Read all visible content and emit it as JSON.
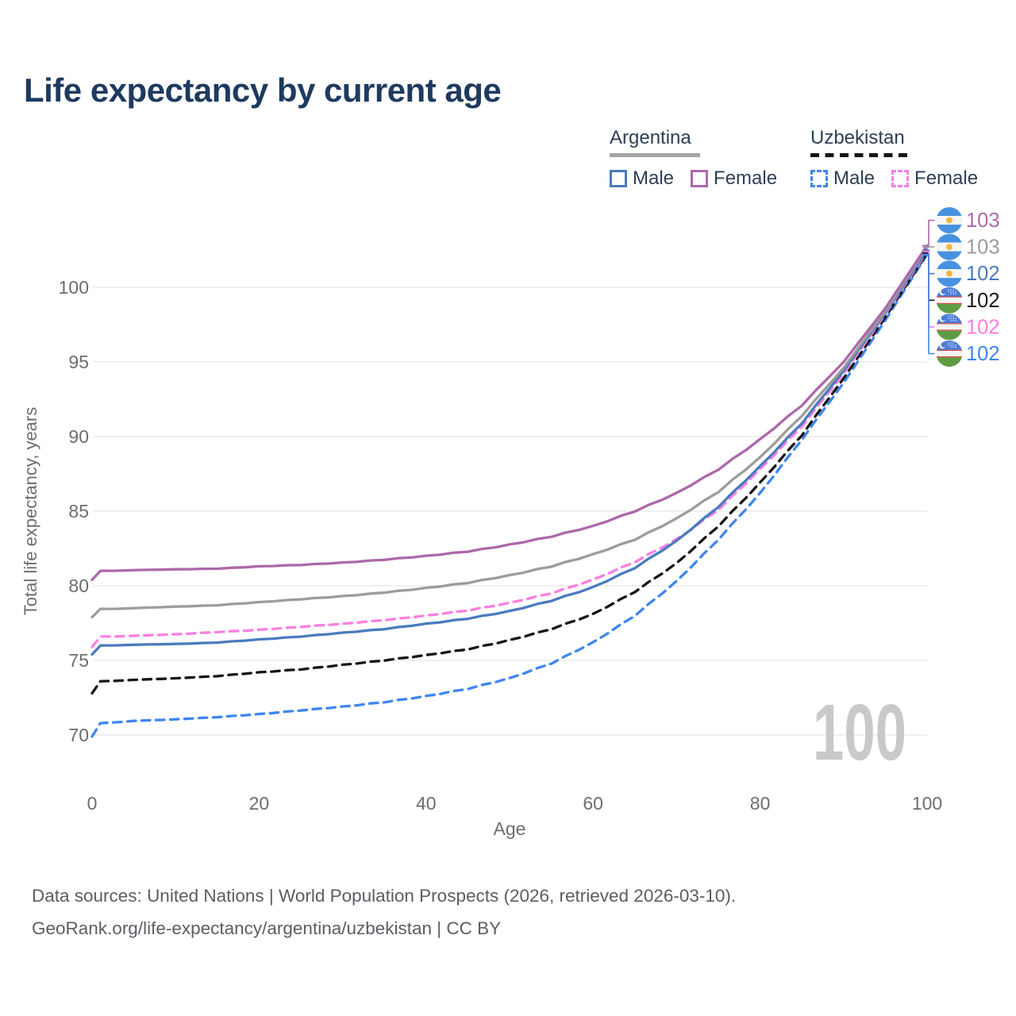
{
  "title": "Life expectancy by current age",
  "watermark": "100",
  "legend": {
    "groups": [
      {
        "label": "Argentina",
        "line_style": "solid",
        "line_color": "#a3a3a3",
        "items": [
          {
            "label": "Male",
            "color": "#4a7bbd",
            "style": "solid"
          },
          {
            "label": "Female",
            "color": "#ac68aa",
            "style": "solid"
          }
        ]
      },
      {
        "label": "Uzbekistan",
        "line_style": "dashed",
        "line_color": "#161616",
        "items": [
          {
            "label": "Male",
            "color": "#3e86f0",
            "style": "dashed"
          },
          {
            "label": "Female",
            "color": "#fb7ee0",
            "style": "dashed"
          }
        ]
      }
    ]
  },
  "chart_data": {
    "type": "line",
    "title": "Life expectancy by current age",
    "xlabel": "Age",
    "ylabel": "Total life expectancy, years",
    "xlim": [
      0,
      100
    ],
    "ylim": [
      68,
      104
    ],
    "x_ticks": [
      0,
      20,
      40,
      60,
      80,
      100
    ],
    "y_ticks": [
      70,
      75,
      80,
      85,
      90,
      95,
      100
    ],
    "grid": "horizontal",
    "legend_position": "top-right",
    "x": [
      0,
      1,
      5,
      10,
      15,
      20,
      25,
      30,
      35,
      40,
      45,
      50,
      55,
      60,
      65,
      70,
      75,
      80,
      85,
      90,
      95,
      100
    ],
    "series": [
      {
        "name": "Argentina Female",
        "country": "Argentina",
        "sex": "Female",
        "color": "#ac68aa",
        "dash": false,
        "end_label": "103",
        "flag": "argentina-flag-icon",
        "values": [
          80.4,
          81.0,
          81.05,
          81.1,
          81.15,
          81.3,
          81.4,
          81.55,
          81.75,
          82.0,
          82.3,
          82.75,
          83.3,
          84.0,
          85.0,
          86.2,
          87.8,
          89.8,
          92.1,
          95.0,
          98.6,
          102.8
        ]
      },
      {
        "name": "Argentina Both sexes",
        "country": "Argentina",
        "sex": "Both",
        "color": "#9c9c9c",
        "dash": false,
        "end_label": "103",
        "flag": "argentina-flag-icon",
        "values": [
          77.9,
          78.45,
          78.5,
          78.6,
          78.7,
          78.9,
          79.1,
          79.3,
          79.55,
          79.85,
          80.2,
          80.7,
          81.3,
          82.1,
          83.1,
          84.5,
          86.3,
          88.6,
          91.4,
          94.6,
          98.4,
          102.7
        ]
      },
      {
        "name": "Argentina Male",
        "country": "Argentina",
        "sex": "Male",
        "color": "#4a7bbd",
        "dash": false,
        "end_label": "102",
        "flag": "argentina-flag-icon",
        "values": [
          75.4,
          76.0,
          76.05,
          76.1,
          76.2,
          76.4,
          76.6,
          76.85,
          77.1,
          77.45,
          77.8,
          78.3,
          79.0,
          79.9,
          81.2,
          83.0,
          85.3,
          88.0,
          90.9,
          94.4,
          98.3,
          102.5
        ]
      },
      {
        "name": "Uzbekistan Both sexes",
        "country": "Uzbekistan",
        "sex": "Both",
        "color": "#161616",
        "dash": true,
        "end_label": "102",
        "flag": "uzbekistan-flag-icon",
        "values": [
          72.8,
          73.6,
          73.7,
          73.8,
          73.95,
          74.2,
          74.4,
          74.7,
          75.0,
          75.35,
          75.75,
          76.35,
          77.1,
          78.1,
          79.6,
          81.5,
          84.0,
          86.9,
          90.1,
          93.9,
          98.0,
          102.3
        ]
      },
      {
        "name": "Uzbekistan Female",
        "country": "Uzbekistan",
        "sex": "Female",
        "color": "#fb7ee0",
        "dash": true,
        "end_label": "102",
        "flag": "uzbekistan-flag-icon",
        "values": [
          75.9,
          76.6,
          76.65,
          76.75,
          76.9,
          77.05,
          77.25,
          77.45,
          77.7,
          78.0,
          78.35,
          78.85,
          79.5,
          80.4,
          81.6,
          83.1,
          85.1,
          87.8,
          90.7,
          94.2,
          98.2,
          102.4
        ]
      },
      {
        "name": "Uzbekistan Male",
        "country": "Uzbekistan",
        "sex": "Male",
        "color": "#3e86f0",
        "dash": true,
        "end_label": "102",
        "flag": "uzbekistan-flag-icon",
        "values": [
          69.9,
          70.8,
          70.95,
          71.05,
          71.2,
          71.4,
          71.65,
          71.9,
          72.2,
          72.6,
          73.1,
          73.8,
          74.8,
          76.2,
          78.0,
          80.3,
          83.1,
          86.2,
          89.8,
          93.6,
          97.8,
          102.2
        ]
      }
    ]
  },
  "flags": {
    "argentina": {
      "band": "#4792E0",
      "white": "#F5F5F3",
      "sun": "#F1B63F"
    },
    "uzbekistan": {
      "blue": "#4C7CD9",
      "white": "#F5F5F3",
      "red": "#D2443C",
      "green": "#5E9C44"
    }
  },
  "axis_style": {
    "tick_color": "#6d6d6d",
    "grid_color": "#ececec",
    "watermark_color": "#c9c9c9"
  },
  "footer": {
    "line1": "Data sources: United Nations | World Population Prospects (2026, retrieved 2026-03-10).",
    "line2": "GeoRank.org/life-expectancy/argentina/uzbekistan | CC BY"
  }
}
